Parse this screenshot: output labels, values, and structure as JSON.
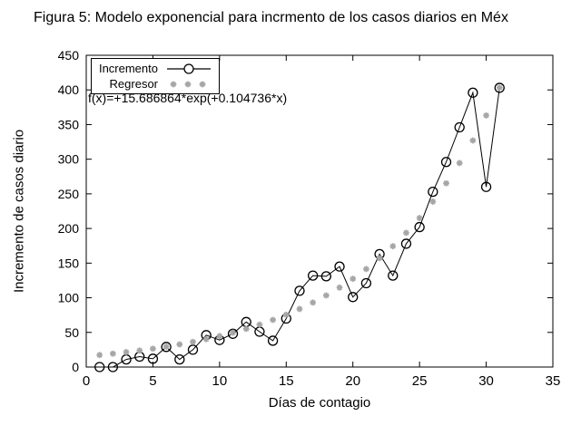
{
  "title": "Figura 5: Modelo exponencial para incrmento de los casos diarios en Méx",
  "colors": {
    "series_line": "#000000",
    "regressor": "#a6a6a6",
    "background": "#ffffff"
  },
  "chart_data": {
    "type": "line",
    "title": "Figura 5: Modelo exponencial para incrmento de los casos diarios en Méx",
    "xlabel": "Días de contagio",
    "ylabel": "Incremento de casos diario",
    "xlim": [
      0,
      35
    ],
    "ylim": [
      0,
      450
    ],
    "xticks": [
      0,
      5,
      10,
      15,
      20,
      25,
      30,
      35
    ],
    "yticks": [
      0,
      50,
      100,
      150,
      200,
      250,
      300,
      350,
      400,
      450
    ],
    "grid": false,
    "legend_position": "top-left",
    "annotation": "f(x)=+15.686864*exp(+0.104736*x)",
    "x": [
      1,
      2,
      3,
      4,
      5,
      6,
      7,
      8,
      9,
      10,
      11,
      12,
      13,
      14,
      15,
      16,
      17,
      18,
      19,
      20,
      21,
      22,
      23,
      24,
      25,
      26,
      27,
      28,
      29,
      30,
      31
    ],
    "series": [
      {
        "name": "Incremento",
        "style": "line-with-open-circles",
        "color": "#000000",
        "values": [
          0,
          0,
          11,
          15,
          12,
          29,
          11,
          25,
          46,
          39,
          48,
          65,
          51,
          38,
          70,
          110,
          132,
          131,
          145,
          101,
          121,
          163,
          132,
          178,
          202,
          253,
          296,
          346,
          396,
          260,
          403
        ]
      },
      {
        "name": "Regresor",
        "style": "asterisk-scatter",
        "color": "#a6a6a6",
        "values": [
          17.4,
          19.3,
          21.5,
          23.8,
          26.5,
          29.4,
          32.7,
          36.3,
          40.3,
          44.7,
          49.6,
          55.1,
          61.2,
          68.0,
          75.5,
          83.8,
          93.1,
          103.3,
          114.7,
          127.4,
          141.5,
          157.1,
          174.4,
          193.7,
          215.1,
          238.8,
          265.2,
          294.5,
          327.0,
          363.1,
          403.2
        ]
      }
    ]
  }
}
